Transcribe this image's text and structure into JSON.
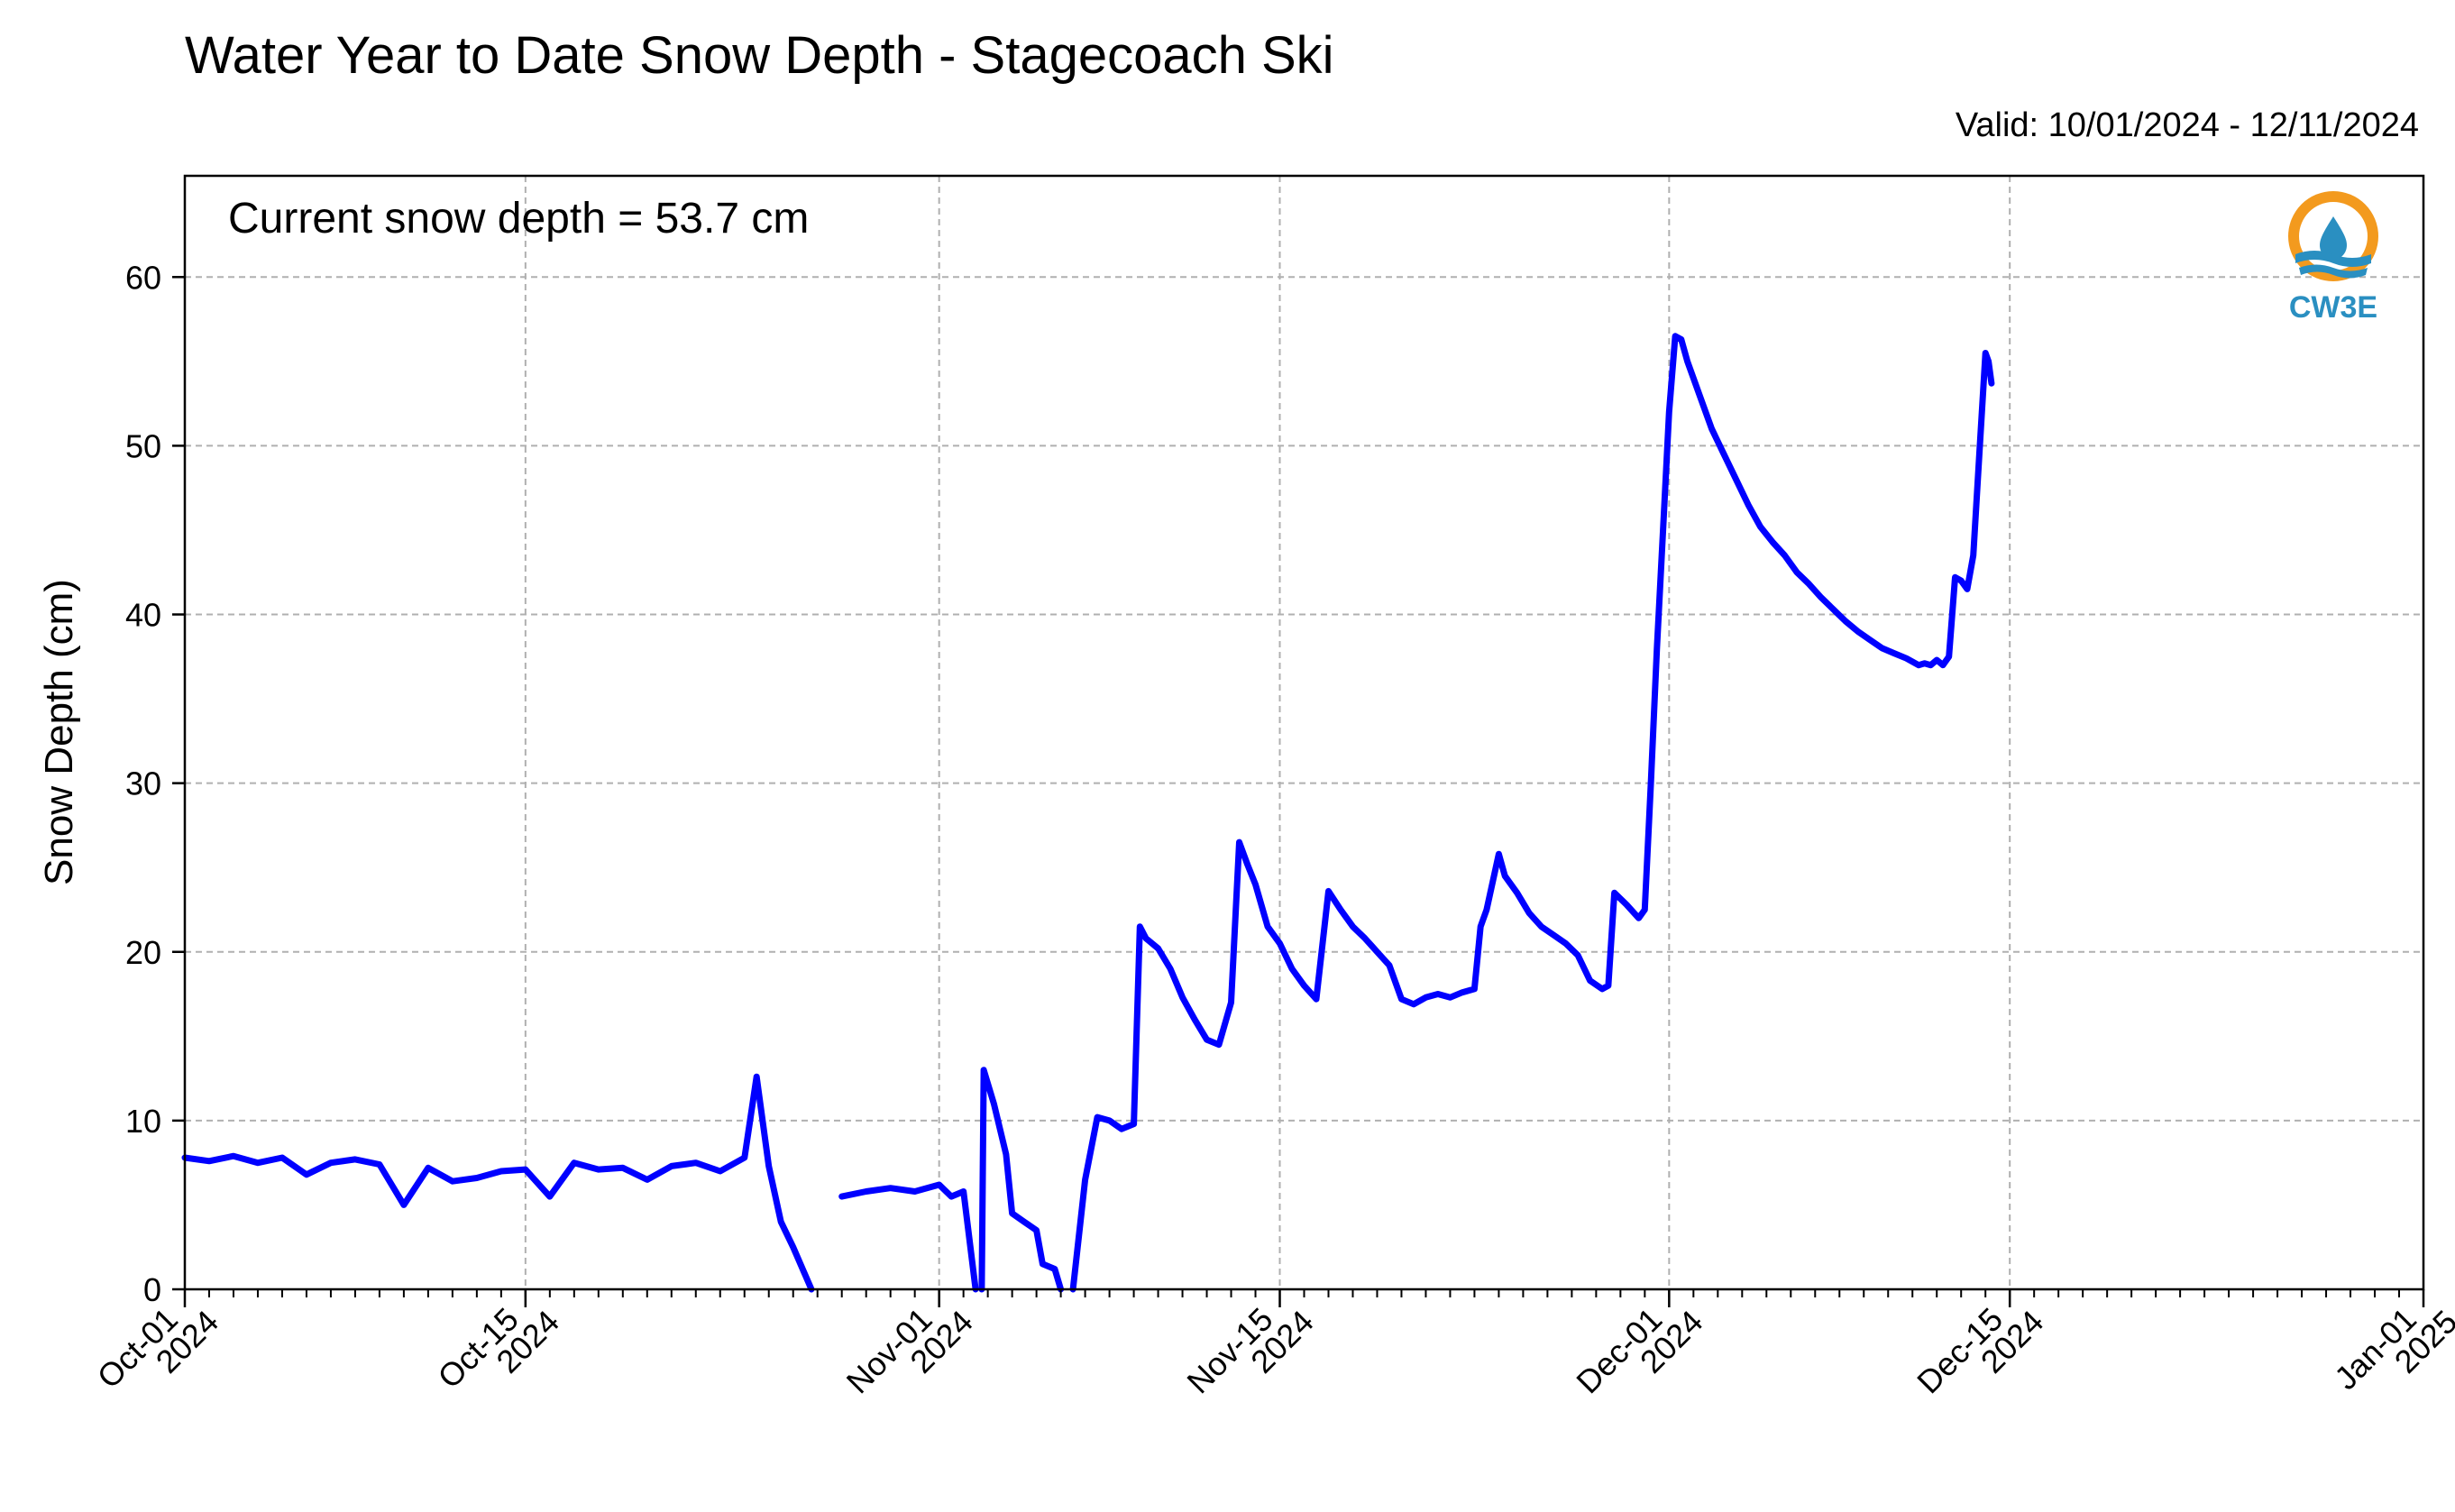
{
  "chart_data": {
    "type": "line",
    "title": "Water Year to Date Snow Depth - Stagecoach Ski",
    "subtitle": "Valid: 10/01/2024 - 12/11/2024",
    "annotation": "Current snow depth = 53.7 cm",
    "logo_text": "CW3E",
    "xlabel": "",
    "ylabel": "Snow Depth (cm)",
    "xlim": [
      "2024-10-01",
      "2025-01-01"
    ],
    "ylim": [
      0,
      66
    ],
    "yticks": [
      0,
      10,
      20,
      30,
      40,
      50,
      60
    ],
    "xticks": [
      {
        "date": "2024-10-01",
        "line1": "Oct-01",
        "line2": "2024"
      },
      {
        "date": "2024-10-15",
        "line1": "Oct-15",
        "line2": "2024"
      },
      {
        "date": "2024-11-01",
        "line1": "Nov-01",
        "line2": "2024"
      },
      {
        "date": "2024-11-15",
        "line1": "Nov-15",
        "line2": "2024"
      },
      {
        "date": "2024-12-01",
        "line1": "Dec-01",
        "line2": "2024"
      },
      {
        "date": "2024-12-15",
        "line1": "Dec-15",
        "line2": "2024"
      },
      {
        "date": "2025-01-01",
        "line1": "Jan-01",
        "line2": "2025"
      }
    ],
    "grid": true,
    "line_color": "#0000ff",
    "grid_color": "#b0b0b0",
    "logo_colors": {
      "orange": "#f39a1e",
      "blue": "#2a8fc1"
    },
    "series": [
      {
        "segments": [
          [
            [
              "2024-10-01 00:00",
              7.8
            ],
            [
              "2024-10-02 00:00",
              7.6
            ],
            [
              "2024-10-03 00:00",
              7.9
            ],
            [
              "2024-10-04 00:00",
              7.5
            ],
            [
              "2024-10-05 00:00",
              7.8
            ],
            [
              "2024-10-06 00:00",
              6.8
            ],
            [
              "2024-10-07 00:00",
              7.5
            ],
            [
              "2024-10-08 00:00",
              7.7
            ],
            [
              "2024-10-09 00:00",
              7.4
            ],
            [
              "2024-10-10 00:00",
              5.0
            ],
            [
              "2024-10-11 00:00",
              7.2
            ],
            [
              "2024-10-12 00:00",
              6.4
            ],
            [
              "2024-10-13 00:00",
              6.6
            ],
            [
              "2024-10-14 00:00",
              7.0
            ],
            [
              "2024-10-15 00:00",
              7.1
            ],
            [
              "2024-10-16 00:00",
              5.5
            ],
            [
              "2024-10-17 00:00",
              7.5
            ],
            [
              "2024-10-18 00:00",
              7.1
            ],
            [
              "2024-10-19 00:00",
              7.2
            ],
            [
              "2024-10-20 00:00",
              6.5
            ],
            [
              "2024-10-21 00:00",
              7.3
            ],
            [
              "2024-10-22 00:00",
              7.5
            ],
            [
              "2024-10-23 00:00",
              7.0
            ],
            [
              "2024-10-24 00:00",
              7.8
            ],
            [
              "2024-10-24 12:00",
              12.6
            ],
            [
              "2024-10-25 00:00",
              7.3
            ],
            [
              "2024-10-25 12:00",
              4.0
            ],
            [
              "2024-10-26 00:00",
              2.5
            ],
            [
              "2024-10-26 18:00",
              0.0
            ]
          ],
          [
            [
              "2024-10-28 00:00",
              5.5
            ],
            [
              "2024-10-29 00:00",
              5.8
            ],
            [
              "2024-10-30 00:00",
              6.0
            ],
            [
              "2024-10-31 00:00",
              5.8
            ],
            [
              "2024-11-01 00:00",
              6.2
            ],
            [
              "2024-11-01 12:00",
              5.5
            ],
            [
              "2024-11-02 00:00",
              5.8
            ],
            [
              "2024-11-02 12:00",
              0.0
            ]
          ],
          [
            [
              "2024-11-02 18:00",
              0.0
            ],
            [
              "2024-11-02 20:00",
              13.0
            ],
            [
              "2024-11-03 06:00",
              11.0
            ],
            [
              "2024-11-03 18:00",
              8.0
            ],
            [
              "2024-11-04 00:00",
              4.5
            ],
            [
              "2024-11-04 12:00",
              4.0
            ],
            [
              "2024-11-05 00:00",
              3.5
            ],
            [
              "2024-11-05 06:00",
              1.5
            ],
            [
              "2024-11-05 18:00",
              1.2
            ],
            [
              "2024-11-06 00:00",
              0.0
            ]
          ],
          [
            [
              "2024-11-06 12:00",
              0.0
            ],
            [
              "2024-11-07 00:00",
              6.5
            ],
            [
              "2024-11-07 12:00",
              10.2
            ],
            [
              "2024-11-08 00:00",
              10.0
            ],
            [
              "2024-11-08 12:00",
              9.5
            ],
            [
              "2024-11-09 00:00",
              9.8
            ],
            [
              "2024-11-09 06:00",
              21.5
            ],
            [
              "2024-11-09 12:00",
              20.8
            ],
            [
              "2024-11-10 00:00",
              20.2
            ],
            [
              "2024-11-10 12:00",
              19.0
            ],
            [
              "2024-11-11 00:00",
              17.3
            ],
            [
              "2024-11-11 12:00",
              16.0
            ],
            [
              "2024-11-12 00:00",
              14.8
            ],
            [
              "2024-11-12 12:00",
              14.5
            ],
            [
              "2024-11-13 00:00",
              17.0
            ],
            [
              "2024-11-13 08:00",
              26.5
            ],
            [
              "2024-11-13 16:00",
              25.2
            ],
            [
              "2024-11-14 00:00",
              24.0
            ],
            [
              "2024-11-14 12:00",
              21.5
            ],
            [
              "2024-11-15 00:00",
              20.5
            ],
            [
              "2024-11-15 12:00",
              19.0
            ],
            [
              "2024-11-16 00:00",
              18.0
            ],
            [
              "2024-11-16 12:00",
              17.2
            ],
            [
              "2024-11-17 00:00",
              23.6
            ],
            [
              "2024-11-17 12:00",
              22.5
            ],
            [
              "2024-11-18 00:00",
              21.5
            ],
            [
              "2024-11-18 12:00",
              20.8
            ],
            [
              "2024-11-19 00:00",
              20.0
            ],
            [
              "2024-11-19 12:00",
              19.2
            ],
            [
              "2024-11-20 00:00",
              17.2
            ],
            [
              "2024-11-20 12:00",
              16.9
            ],
            [
              "2024-11-21 00:00",
              17.3
            ],
            [
              "2024-11-21 12:00",
              17.5
            ],
            [
              "2024-11-22 00:00",
              17.3
            ],
            [
              "2024-11-22 12:00",
              17.6
            ],
            [
              "2024-11-23 00:00",
              17.8
            ],
            [
              "2024-11-23 06:00",
              21.5
            ],
            [
              "2024-11-23 12:00",
              22.5
            ],
            [
              "2024-11-24 00:00",
              25.8
            ],
            [
              "2024-11-24 06:00",
              24.5
            ],
            [
              "2024-11-24 18:00",
              23.5
            ],
            [
              "2024-11-25 06:00",
              22.3
            ],
            [
              "2024-11-25 18:00",
              21.5
            ],
            [
              "2024-11-26 06:00",
              21.0
            ],
            [
              "2024-11-26 18:00",
              20.5
            ],
            [
              "2024-11-27 06:00",
              19.8
            ],
            [
              "2024-11-27 18:00",
              18.3
            ],
            [
              "2024-11-28 06:00",
              17.8
            ],
            [
              "2024-11-28 12:00",
              18.0
            ],
            [
              "2024-11-28 18:00",
              23.5
            ],
            [
              "2024-11-29 06:00",
              22.8
            ],
            [
              "2024-11-29 18:00",
              22.0
            ],
            [
              "2024-11-30 00:00",
              22.5
            ],
            [
              "2024-11-30 06:00",
              30.0
            ],
            [
              "2024-11-30 12:00",
              38.0
            ],
            [
              "2024-11-30 18:00",
              45.0
            ],
            [
              "2024-12-01 00:00",
              52.0
            ],
            [
              "2024-12-01 06:00",
              56.5
            ],
            [
              "2024-12-01 12:00",
              56.3
            ],
            [
              "2024-12-01 18:00",
              55.0
            ],
            [
              "2024-12-02 06:00",
              53.0
            ],
            [
              "2024-12-02 18:00",
              51.0
            ],
            [
              "2024-12-03 06:00",
              49.5
            ],
            [
              "2024-12-03 18:00",
              48.0
            ],
            [
              "2024-12-04 06:00",
              46.5
            ],
            [
              "2024-12-04 18:00",
              45.2
            ],
            [
              "2024-12-05 06:00",
              44.3
            ],
            [
              "2024-12-05 18:00",
              43.5
            ],
            [
              "2024-12-06 06:00",
              42.5
            ],
            [
              "2024-12-06 18:00",
              41.8
            ],
            [
              "2024-12-07 06:00",
              41.0
            ],
            [
              "2024-12-07 18:00",
              40.3
            ],
            [
              "2024-12-08 06:00",
              39.6
            ],
            [
              "2024-12-08 18:00",
              39.0
            ],
            [
              "2024-12-09 06:00",
              38.5
            ],
            [
              "2024-12-09 18:00",
              38.0
            ],
            [
              "2024-12-10 06:00",
              37.7
            ],
            [
              "2024-12-10 18:00",
              37.4
            ],
            [
              "2024-12-11 06:00",
              37.0
            ],
            [
              "2024-12-11 12:00",
              37.1
            ],
            [
              "2024-12-11 18:00",
              37.0
            ],
            [
              "2024-12-12 00:00",
              37.3
            ],
            [
              "2024-12-12 06:00",
              37.0
            ],
            [
              "2024-12-12 12:00",
              37.5
            ],
            [
              "2024-12-12 18:00",
              42.2
            ],
            [
              "2024-12-13 00:00",
              42.0
            ],
            [
              "2024-12-13 06:00",
              41.5
            ],
            [
              "2024-12-13 12:00",
              43.5
            ],
            [
              "2024-12-13 18:00",
              49.5
            ],
            [
              "2024-12-14 00:00",
              55.5
            ],
            [
              "2024-12-14 03:00",
              55.0
            ],
            [
              "2024-12-14 06:00",
              53.7
            ]
          ]
        ]
      }
    ]
  }
}
